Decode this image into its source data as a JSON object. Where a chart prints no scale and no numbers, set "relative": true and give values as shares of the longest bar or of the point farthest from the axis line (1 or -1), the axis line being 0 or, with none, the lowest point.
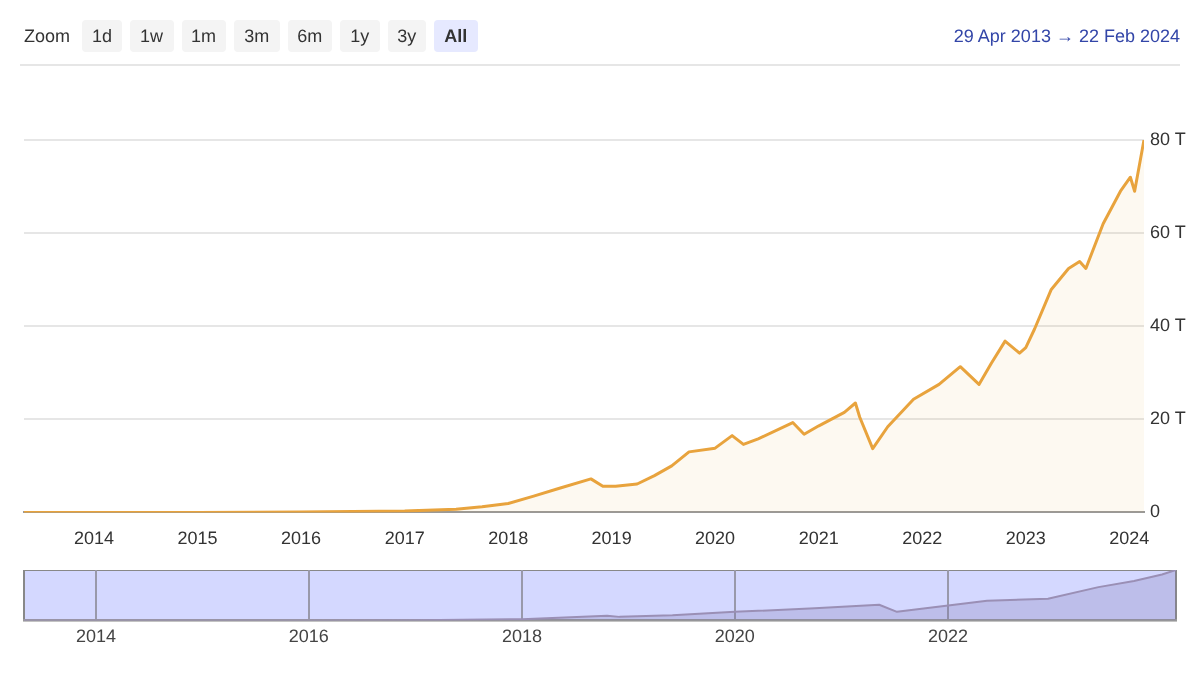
{
  "chart_data": [
    {
      "type": "area",
      "annotations": [
        "Zoom",
        "1d",
        "1w",
        "1m",
        "3m",
        "6m",
        "1y",
        "3y",
        "All",
        "29 Apr 2013 → 22 Feb 2024"
      ],
      "x": [
        "2013-04-29",
        "2014-01-01",
        "2015-01-01",
        "2016-01-01",
        "2017-01-01",
        "2017-07-01",
        "2017-10-01",
        "2018-01-01",
        "2018-04-01",
        "2018-07-01",
        "2018-10-20",
        "2018-12-01",
        "2019-01-15",
        "2019-04-01",
        "2019-06-01",
        "2019-08-01",
        "2019-10-01",
        "2020-01-01",
        "2020-03-01",
        "2020-04-10",
        "2020-06-01",
        "2020-10-01",
        "2020-11-10",
        "2021-01-01",
        "2021-04-01",
        "2021-05-10",
        "2021-05-25",
        "2021-07-10",
        "2021-09-01",
        "2021-12-01",
        "2022-03-01",
        "2022-05-15",
        "2022-07-20",
        "2022-09-01",
        "2022-10-20",
        "2022-12-10",
        "2023-01-01",
        "2023-02-01",
        "2023-04-01",
        "2023-06-01",
        "2023-07-10",
        "2023-08-01",
        "2023-10-01",
        "2023-12-01",
        "2024-01-05",
        "2024-01-20",
        "2024-02-22"
      ],
      "series": [
        {
          "color": "#e8a33d",
          "values": [
            0,
            0,
            0,
            0.1,
            0.3,
            0.7,
            1.2,
            1.9,
            3.5,
            5.2,
            7.2,
            5.6,
            5.6,
            6.1,
            7.9,
            10,
            13,
            13.8,
            16.5,
            14.6,
            15.8,
            19.3,
            16.8,
            18.6,
            21.5,
            23.5,
            20.5,
            13.7,
            18.4,
            24.3,
            27.5,
            31.3,
            27.5,
            32,
            36.8,
            34.2,
            35.4,
            39.4,
            47.9,
            52.4,
            53.9,
            52.4,
            62,
            69,
            72,
            69,
            80
          ]
        }
      ],
      "xlim": [
        "2013-04-29",
        "2024-02-22"
      ],
      "xticks": [
        {
          "value": "2014-01-01",
          "label": "2014"
        },
        {
          "value": "2015-01-01",
          "label": "2015"
        },
        {
          "value": "2016-01-01",
          "label": "2016"
        },
        {
          "value": "2017-01-01",
          "label": "2017"
        },
        {
          "value": "2018-01-01",
          "label": "2018"
        },
        {
          "value": "2019-01-01",
          "label": "2019"
        },
        {
          "value": "2020-01-01",
          "label": "2020"
        },
        {
          "value": "2021-01-01",
          "label": "2021"
        },
        {
          "value": "2022-01-01",
          "label": "2022"
        },
        {
          "value": "2023-01-01",
          "label": "2023"
        },
        {
          "value": "2024-01-01",
          "label": "2024"
        }
      ],
      "ylim": [
        0,
        80
      ],
      "yticks": [
        0,
        {
          "value": 20,
          "label": "20 T"
        },
        {
          "value": 40,
          "label": "40 T"
        },
        {
          "value": 60,
          "label": "60 T"
        },
        {
          "value": 80,
          "label": "80 T"
        }
      ],
      "grid": "y"
    },
    {
      "type": "area",
      "relative": true,
      "tick_labels": "x",
      "x": [
        "2013-04-29",
        "2016-01-01",
        "2017-01-01",
        "2018-01-01",
        "2018-10-20",
        "2018-12-01",
        "2019-06-01",
        "2020-01-01",
        "2020-10-01",
        "2021-05-10",
        "2021-07-10",
        "2022-05-15",
        "2022-12-10",
        "2023-06-01",
        "2023-10-01",
        "2024-01-05",
        "2024-02-22"
      ],
      "series": [
        {
          "color": "#9a8fb5",
          "values": [
            0,
            0,
            0.004,
            0.024,
            0.09,
            0.07,
            0.1,
            0.17,
            0.24,
            0.31,
            0.17,
            0.39,
            0.43,
            0.66,
            0.78,
            0.91,
            1
          ]
        }
      ],
      "xlim": [
        "2013-04-29",
        "2024-02-22"
      ],
      "xticks": [
        {
          "value": "2014-01-01",
          "label": "2014"
        },
        {
          "value": "2016-01-01",
          "label": "2016"
        },
        {
          "value": "2018-01-01",
          "label": "2018"
        },
        {
          "value": "2020-01-01",
          "label": "2020"
        },
        {
          "value": "2022-01-01",
          "label": "2022"
        }
      ],
      "grid": "x"
    }
  ]
}
